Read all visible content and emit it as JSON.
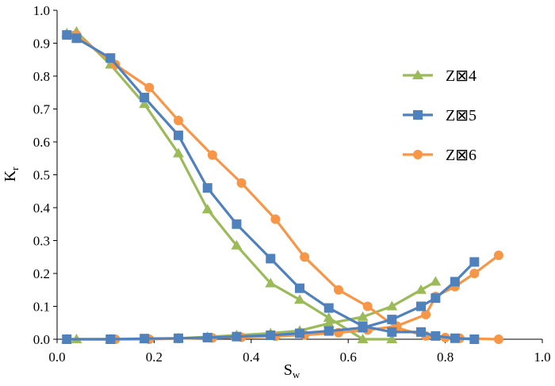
{
  "chart_data": {
    "type": "line",
    "xlabel": "S",
    "xlabel_sub": "w",
    "ylabel": "K",
    "ylabel_sub": "r",
    "xlim": [
      0.0,
      1.0
    ],
    "ylim": [
      0.0,
      1.0
    ],
    "x_ticks": [
      "0.0",
      "0.2",
      "0.4",
      "0.6",
      "0.8",
      "1.0"
    ],
    "y_ticks": [
      "0.0",
      "0.1",
      "0.2",
      "0.3",
      "0.4",
      "0.5",
      "0.6",
      "0.7",
      "0.8",
      "0.9",
      "1.0"
    ],
    "grid": false,
    "legend_position": "right",
    "series": [
      {
        "name": "Z⊠4",
        "color": "#9bbb59",
        "marker": "triangle",
        "curves": [
          {
            "x": [
              0.02,
              0.04,
              0.11,
              0.18,
              0.25,
              0.31,
              0.37,
              0.44,
              0.5,
              0.56,
              0.63,
              0.69
            ],
            "y": [
              0.93,
              0.935,
              0.835,
              0.715,
              0.565,
              0.395,
              0.285,
              0.17,
              0.12,
              0.065,
              0.0,
              0.0
            ]
          },
          {
            "x": [
              0.02,
              0.04,
              0.11,
              0.18,
              0.25,
              0.31,
              0.37,
              0.44,
              0.5,
              0.56,
              0.63,
              0.69,
              0.75,
              0.78
            ],
            "y": [
              0.0,
              0.0,
              0.0,
              0.0,
              0.003,
              0.007,
              0.012,
              0.018,
              0.026,
              0.048,
              0.068,
              0.1,
              0.15,
              0.175
            ]
          }
        ]
      },
      {
        "name": "Z⊠5",
        "color": "#4f81bd",
        "marker": "square",
        "curves": [
          {
            "x": [
              0.02,
              0.04,
              0.11,
              0.18,
              0.25,
              0.31,
              0.37,
              0.44,
              0.5,
              0.56,
              0.63,
              0.69,
              0.75,
              0.78,
              0.82,
              0.86
            ],
            "y": [
              0.925,
              0.915,
              0.855,
              0.735,
              0.62,
              0.46,
              0.35,
              0.245,
              0.155,
              0.095,
              0.04,
              0.022,
              0.022,
              0.01,
              0.003,
              0.0
            ]
          },
          {
            "x": [
              0.02,
              0.11,
              0.18,
              0.25,
              0.31,
              0.37,
              0.44,
              0.5,
              0.56,
              0.63,
              0.69,
              0.75,
              0.78,
              0.82,
              0.86
            ],
            "y": [
              0.0,
              0.0,
              0.002,
              0.003,
              0.005,
              0.008,
              0.012,
              0.018,
              0.025,
              0.035,
              0.06,
              0.1,
              0.125,
              0.175,
              0.235
            ]
          }
        ]
      },
      {
        "name": "Z⊠6",
        "color": "#f79646",
        "marker": "circle",
        "curves": [
          {
            "x": [
              0.02,
              0.04,
              0.12,
              0.19,
              0.25,
              0.32,
              0.38,
              0.45,
              0.51,
              0.58,
              0.64,
              0.7,
              0.76,
              0.8,
              0.83,
              0.91
            ],
            "y": [
              0.925,
              0.925,
              0.835,
              0.765,
              0.665,
              0.56,
              0.475,
              0.365,
              0.25,
              0.15,
              0.1,
              0.035,
              0.01,
              0.005,
              0.003,
              0.0
            ]
          },
          {
            "x": [
              0.02,
              0.12,
              0.19,
              0.25,
              0.32,
              0.38,
              0.45,
              0.51,
              0.58,
              0.64,
              0.7,
              0.76,
              0.78,
              0.82,
              0.86,
              0.91
            ],
            "y": [
              0.0,
              0.0,
              0.0,
              0.002,
              0.004,
              0.006,
              0.009,
              0.013,
              0.02,
              0.028,
              0.04,
              0.075,
              0.13,
              0.16,
              0.2,
              0.255
            ]
          }
        ]
      }
    ]
  }
}
